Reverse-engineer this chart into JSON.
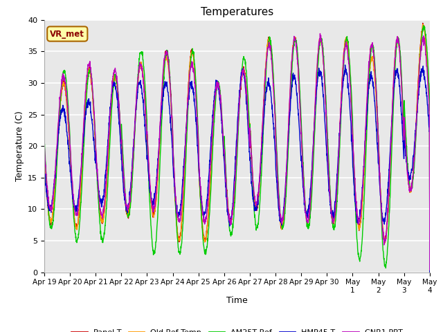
{
  "title": "Temperatures",
  "xlabel": "Time",
  "ylabel": "Temperature (C)",
  "ylim": [
    0,
    40
  ],
  "yticks": [
    0,
    5,
    10,
    15,
    20,
    25,
    30,
    35,
    40
  ],
  "xtick_labels": [
    "Apr 19",
    "Apr 20",
    "Apr 21",
    "Apr 22",
    "Apr 23",
    "Apr 24",
    "Apr 25",
    "Apr 26",
    "Apr 27",
    "Apr 28",
    "Apr 29",
    "Apr 30",
    "May 1",
    "May 2",
    "May 3",
    "May 4"
  ],
  "series_colors": {
    "Panel T": "#cc0000",
    "Old Ref Temp": "#ff9900",
    "AM25T Ref": "#00cc00",
    "HMP45 T": "#0000cc",
    "CNR1 PRT": "#bb00bb"
  },
  "annotation_text": "VR_met",
  "annotation_bbox_facecolor": "#ffffaa",
  "annotation_bbox_edgecolor": "#aa6600",
  "background_color": "#e8e8e8",
  "grid_color": "#ffffff",
  "n_days": 15,
  "points_per_day": 144,
  "daily_maxes_panel": [
    30,
    32,
    31,
    33,
    35,
    35,
    30,
    32,
    37,
    37,
    37,
    37,
    36,
    37,
    39
  ],
  "daily_mins_panel": [
    8,
    7,
    8,
    9,
    9,
    5,
    5,
    8,
    10,
    7,
    8,
    8,
    7,
    5,
    13
  ],
  "daily_maxes_hmp": [
    26,
    27,
    30,
    30,
    30,
    30,
    30,
    32,
    30,
    31,
    32,
    32,
    31,
    32,
    32
  ],
  "daily_mins_hmp": [
    10,
    10,
    11,
    10,
    11,
    9,
    9,
    8,
    10,
    8,
    9,
    9,
    8,
    8,
    15
  ],
  "daily_maxes_am25": [
    32,
    32,
    31,
    35,
    35,
    35,
    30,
    34,
    37,
    37,
    37,
    37,
    36,
    37,
    39
  ],
  "daily_mins_am25": [
    7,
    5,
    5,
    9,
    3,
    3,
    3,
    6,
    7,
    7,
    7,
    7,
    2,
    1,
    13
  ],
  "daily_maxes_cnr": [
    31,
    33,
    32,
    33,
    35,
    33,
    30,
    32,
    36,
    37,
    37,
    36,
    36,
    37,
    37
  ],
  "daily_mins_cnr": [
    10,
    9,
    9,
    10,
    10,
    8,
    8,
    8,
    11,
    8,
    8,
    8,
    8,
    5,
    13
  ],
  "daily_maxes_old": [
    30,
    32,
    31,
    33,
    34,
    35,
    30,
    32,
    37,
    37,
    37,
    37,
    34,
    37,
    39
  ],
  "daily_mins_old": [
    8,
    7,
    8,
    9,
    9,
    5,
    5,
    8,
    10,
    7,
    8,
    8,
    7,
    5,
    13
  ]
}
